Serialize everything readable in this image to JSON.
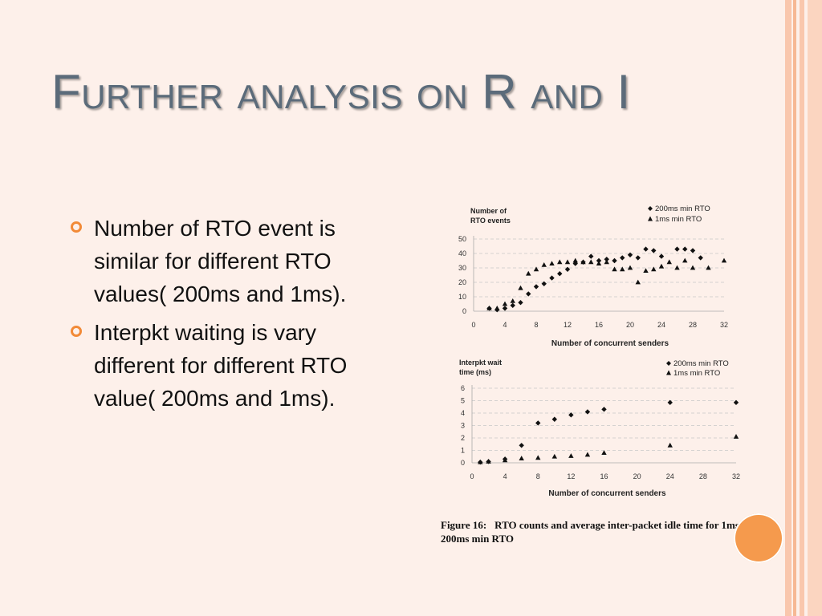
{
  "slide": {
    "title": "Further analysis on R and I",
    "bullets": [
      "Number of RTO event is similar for different RTO values( 200ms and 1ms).",
      "Interpkt waiting is vary different for different RTO value( 200ms and 1ms)."
    ],
    "caption_label": "Figure 16:",
    "caption_text": "RTO counts and average inter-packet idle time for 1ms and 200ms min RTO",
    "colors": {
      "background": "#fdf0ea",
      "accent": "#f28a37",
      "title": "#5b6b7a",
      "circle": "#f59a4d"
    },
    "icons": {
      "bullet": "orange-ring-bullet-icon"
    }
  },
  "chart_data": [
    {
      "type": "scatter",
      "ylabel": "Number of RTO events",
      "xlabel": "Number of concurrent  senders",
      "xlim": [
        0,
        32
      ],
      "ylim": [
        0,
        50
      ],
      "xticks": [
        0,
        4,
        8,
        12,
        16,
        20,
        24,
        28,
        32
      ],
      "yticks": [
        0,
        10,
        20,
        30,
        40,
        50
      ],
      "grid": "dashed-horizontal",
      "legend_position": "top-right",
      "series": [
        {
          "name": "200ms min RTO",
          "marker": "diamond",
          "x": [
            2,
            3,
            4,
            5,
            6,
            7,
            8,
            9,
            10,
            11,
            12,
            13,
            14,
            15,
            16,
            17,
            18,
            19,
            20,
            21,
            22,
            23,
            24,
            26,
            27,
            28,
            29
          ],
          "y": [
            2,
            1,
            2,
            4,
            6,
            12,
            17,
            19,
            23,
            26,
            29,
            33,
            34,
            38,
            35,
            36,
            35,
            37,
            39,
            37,
            43,
            42,
            38,
            43,
            43,
            42,
            37
          ]
        },
        {
          "name": "1ms min RTO",
          "marker": "triangle",
          "x": [
            2,
            3,
            4,
            5,
            6,
            7,
            8,
            9,
            10,
            11,
            12,
            13,
            14,
            15,
            16,
            17,
            18,
            19,
            20,
            21,
            22,
            23,
            24,
            25,
            26,
            27,
            28,
            30,
            32
          ],
          "y": [
            2,
            2,
            5,
            7,
            16,
            26,
            29,
            32,
            33,
            34,
            34,
            35,
            34,
            34,
            33,
            34,
            29,
            29,
            30,
            20,
            28,
            29,
            31,
            34,
            30,
            35,
            30,
            30,
            35
          ]
        }
      ]
    },
    {
      "type": "scatter",
      "ylabel": "Interpkt wait time (ms)",
      "xlabel": "Number of concurrent senders",
      "xlim": [
        0,
        32
      ],
      "ylim": [
        0,
        6
      ],
      "xticks": [
        0,
        4,
        8,
        12,
        16,
        20,
        24,
        28,
        32
      ],
      "yticks": [
        0,
        1,
        2,
        3,
        4,
        5,
        6
      ],
      "grid": "dashed-horizontal",
      "legend_position": "top-right",
      "series": [
        {
          "name": "200ms min RTO",
          "marker": "diamond",
          "x": [
            1,
            2,
            4,
            6,
            8,
            10,
            12,
            14,
            16,
            24,
            32
          ],
          "y": [
            0.05,
            0.1,
            0.3,
            1.4,
            3.2,
            3.5,
            3.85,
            4.1,
            4.3,
            4.85,
            4.85
          ]
        },
        {
          "name": "1ms min RTO",
          "marker": "triangle",
          "x": [
            1,
            2,
            4,
            6,
            8,
            10,
            12,
            14,
            16,
            24,
            32
          ],
          "y": [
            0.05,
            0.1,
            0.2,
            0.35,
            0.4,
            0.5,
            0.55,
            0.65,
            0.8,
            1.4,
            2.1
          ]
        }
      ]
    }
  ]
}
